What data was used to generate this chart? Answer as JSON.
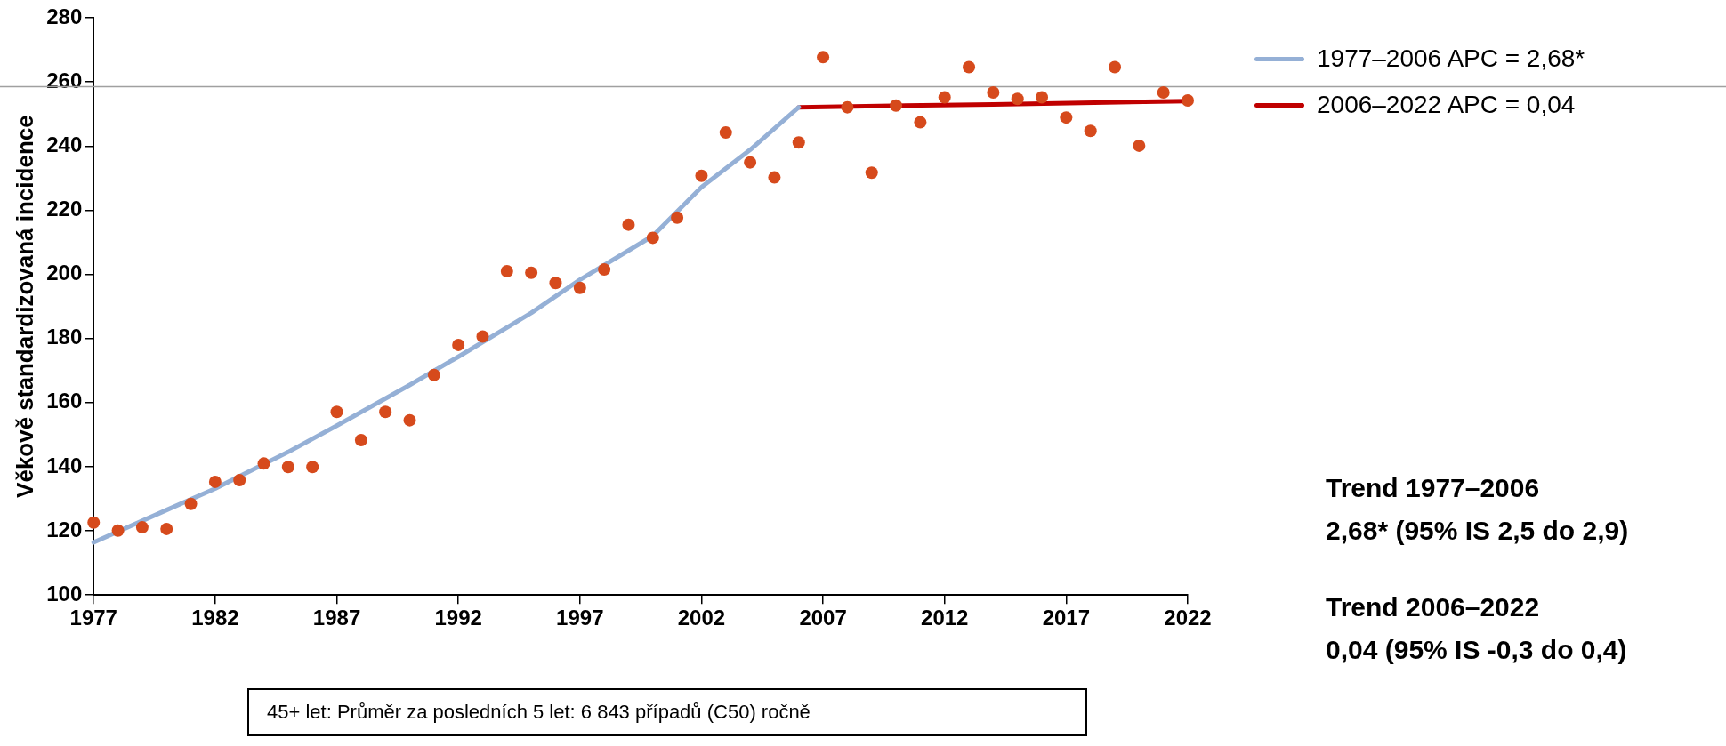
{
  "chart_data": {
    "type": "scatter",
    "ylabel": "Věkově standardizovaná incidence",
    "xlim": [
      1977,
      2022
    ],
    "xticks": [
      1977,
      1982,
      1987,
      1992,
      1997,
      2002,
      2007,
      2012,
      2017,
      2022
    ],
    "ylim": [
      100,
      280
    ],
    "yticks": [
      100,
      120,
      140,
      160,
      180,
      200,
      220,
      240,
      260,
      280
    ],
    "grid": false,
    "legend": "top right",
    "marker": "circle",
    "series": [
      {
        "color": "#d64a1c",
        "x": [
          1977,
          1978,
          1979,
          1980,
          1981,
          1982,
          1983,
          1984,
          1985,
          1986,
          1987,
          1988,
          1989,
          1990,
          1991,
          1992,
          1993,
          1994,
          1995,
          1996,
          1997,
          1998,
          1999,
          2000,
          2001,
          2002,
          2003,
          2004,
          2005,
          2006,
          2007,
          2008,
          2009,
          2010,
          2011,
          2012,
          2013,
          2014,
          2015,
          2016,
          2017,
          2018,
          2019,
          2020,
          2021,
          2022
        ],
        "values": [
          122.6,
          120.1,
          121.1,
          120.6,
          128.4,
          135.3,
          135.8,
          141.0,
          139.9,
          139.9,
          157.1,
          148.3,
          157.1,
          154.5,
          168.6,
          178.0,
          180.6,
          201.0,
          200.5,
          197.3,
          195.8,
          201.5,
          215.5,
          211.4,
          217.7,
          230.7,
          244.2,
          234.9,
          230.2,
          241.1,
          267.7,
          252.1,
          231.7,
          252.6,
          247.4,
          255.2,
          264.6,
          256.7,
          254.7,
          255.2,
          248.9,
          244.7,
          264.6,
          240.1,
          256.7,
          254.2
        ]
      },
      {
        "type": "line",
        "name": "1977–2006 APC = 2,68*",
        "color": "#95b0d6",
        "marker": "none",
        "x": [
          1977,
          1980,
          1982,
          1985,
          1987,
          1990,
          1992,
          1995,
          1997,
          2000,
          2002,
          2004,
          2006
        ],
        "values": [
          116.4,
          126.5,
          133.2,
          144.6,
          152.8,
          165.5,
          174.3,
          188.0,
          198.3,
          212.0,
          227.2,
          238.8,
          252.1
        ]
      },
      {
        "type": "line",
        "name": "2006–2022 APC = 0,04",
        "color": "#c00000",
        "marker": "none",
        "x": [
          2006,
          2014,
          2022
        ],
        "values": [
          252.1,
          253.0,
          254.0
        ]
      }
    ],
    "ref_lines": [
      {
        "axis": "y",
        "value": 258.5,
        "color": "#a0a0a0"
      }
    ],
    "annotations": [
      "Trend 1977–2006",
      "2,68* (95% IS 2,5 do 2,9)",
      "Trend 2006–2022",
      "0,04 (95% IS -0,3 do 0,4)",
      "45+ let: Průměr za posledních 5 let: 6 843 případů (C50) ročně"
    ]
  }
}
